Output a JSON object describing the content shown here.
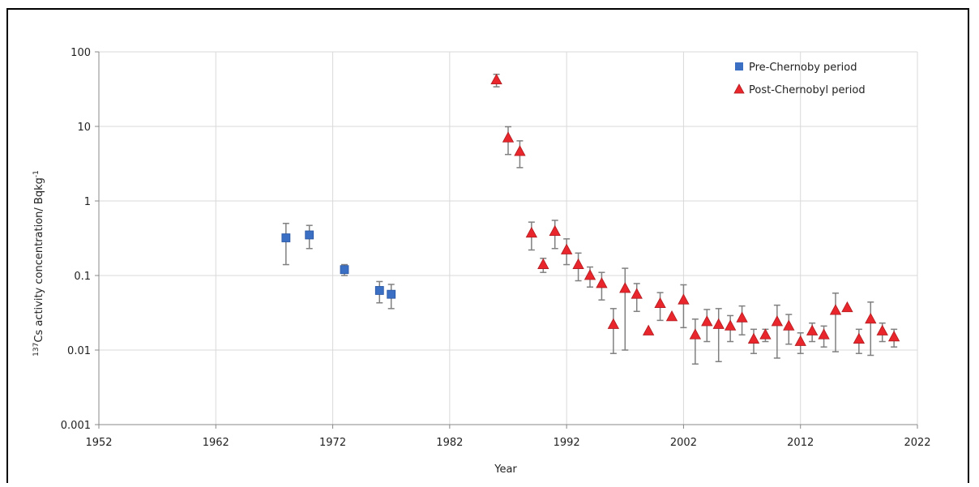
{
  "chart_data": {
    "type": "scatter",
    "title": "",
    "xlabel": "Year",
    "ylabel_parts": [
      "137",
      "Cs activity concentration/ Bqkg",
      "-1"
    ],
    "xlim": [
      1952,
      2022
    ],
    "ylim": [
      0.001,
      100
    ],
    "yscale": "log",
    "x_ticks": [
      1952,
      1962,
      1972,
      1982,
      1992,
      2002,
      2012,
      2022
    ],
    "y_ticks": [
      {
        "value": 0.001,
        "label": "0.001"
      },
      {
        "value": 0.01,
        "label": "0.01"
      },
      {
        "value": 0.1,
        "label": "0.1"
      },
      {
        "value": 1,
        "label": "1"
      },
      {
        "value": 10,
        "label": "10"
      },
      {
        "value": 100,
        "label": "100"
      }
    ],
    "grid": true,
    "legend_position": "top-right",
    "series": [
      {
        "name": "Pre-Chernoby period",
        "marker": "square",
        "color": "#3a6fc4",
        "points": [
          {
            "x": 1968,
            "y": 0.32,
            "lo": 0.14,
            "hi": 0.5
          },
          {
            "x": 1970,
            "y": 0.35,
            "lo": 0.23,
            "hi": 0.47
          },
          {
            "x": 1973,
            "y": 0.12,
            "lo": 0.1,
            "hi": 0.14
          },
          {
            "x": 1976,
            "y": 0.063,
            "lo": 0.043,
            "hi": 0.083
          },
          {
            "x": 1977,
            "y": 0.056,
            "lo": 0.036,
            "hi": 0.076
          }
        ]
      },
      {
        "name": "Post-Chernobyl period",
        "marker": "triangle",
        "color": "#e8262c",
        "points": [
          {
            "x": 1986,
            "y": 42,
            "lo": 34,
            "hi": 50
          },
          {
            "x": 1987,
            "y": 7,
            "lo": 4.2,
            "hi": 9.9
          },
          {
            "x": 1988,
            "y": 4.6,
            "lo": 2.8,
            "hi": 6.4
          },
          {
            "x": 1989,
            "y": 0.37,
            "lo": 0.22,
            "hi": 0.52
          },
          {
            "x": 1990,
            "y": 0.14,
            "lo": 0.11,
            "hi": 0.17
          },
          {
            "x": 1991,
            "y": 0.39,
            "lo": 0.23,
            "hi": 0.55
          },
          {
            "x": 1992,
            "y": 0.22,
            "lo": 0.14,
            "hi": 0.31
          },
          {
            "x": 1993,
            "y": 0.14,
            "lo": 0.085,
            "hi": 0.2
          },
          {
            "x": 1994,
            "y": 0.1,
            "lo": 0.07,
            "hi": 0.13
          },
          {
            "x": 1995,
            "y": 0.078,
            "lo": 0.047,
            "hi": 0.11
          },
          {
            "x": 1996,
            "y": 0.022,
            "lo": 0.009,
            "hi": 0.036
          },
          {
            "x": 1997,
            "y": 0.067,
            "lo": 0.01,
            "hi": 0.125
          },
          {
            "x": 1998,
            "y": 0.056,
            "lo": 0.033,
            "hi": 0.078
          },
          {
            "x": 1999,
            "y": 0.018,
            "lo": 0.018,
            "hi": 0.018
          },
          {
            "x": 2000,
            "y": 0.042,
            "lo": 0.025,
            "hi": 0.059
          },
          {
            "x": 2001,
            "y": 0.028,
            "lo": 0.028,
            "hi": 0.028
          },
          {
            "x": 2002,
            "y": 0.047,
            "lo": 0.02,
            "hi": 0.075
          },
          {
            "x": 2003,
            "y": 0.016,
            "lo": 0.0065,
            "hi": 0.026
          },
          {
            "x": 2004,
            "y": 0.024,
            "lo": 0.013,
            "hi": 0.035
          },
          {
            "x": 2005,
            "y": 0.022,
            "lo": 0.007,
            "hi": 0.036
          },
          {
            "x": 2006,
            "y": 0.021,
            "lo": 0.013,
            "hi": 0.029
          },
          {
            "x": 2007,
            "y": 0.027,
            "lo": 0.016,
            "hi": 0.039
          },
          {
            "x": 2008,
            "y": 0.014,
            "lo": 0.009,
            "hi": 0.019
          },
          {
            "x": 2009,
            "y": 0.016,
            "lo": 0.013,
            "hi": 0.019
          },
          {
            "x": 2010,
            "y": 0.024,
            "lo": 0.0078,
            "hi": 0.04
          },
          {
            "x": 2011,
            "y": 0.021,
            "lo": 0.012,
            "hi": 0.03
          },
          {
            "x": 2012,
            "y": 0.013,
            "lo": 0.009,
            "hi": 0.017
          },
          {
            "x": 2013,
            "y": 0.018,
            "lo": 0.013,
            "hi": 0.023
          },
          {
            "x": 2014,
            "y": 0.016,
            "lo": 0.011,
            "hi": 0.021
          },
          {
            "x": 2015,
            "y": 0.034,
            "lo": 0.0095,
            "hi": 0.058
          },
          {
            "x": 2016,
            "y": 0.037,
            "lo": 0.037,
            "hi": 0.037
          },
          {
            "x": 2017,
            "y": 0.014,
            "lo": 0.009,
            "hi": 0.019
          },
          {
            "x": 2018,
            "y": 0.026,
            "lo": 0.0085,
            "hi": 0.044
          },
          {
            "x": 2019,
            "y": 0.018,
            "lo": 0.013,
            "hi": 0.023
          },
          {
            "x": 2020,
            "y": 0.015,
            "lo": 0.011,
            "hi": 0.019
          }
        ]
      }
    ]
  }
}
